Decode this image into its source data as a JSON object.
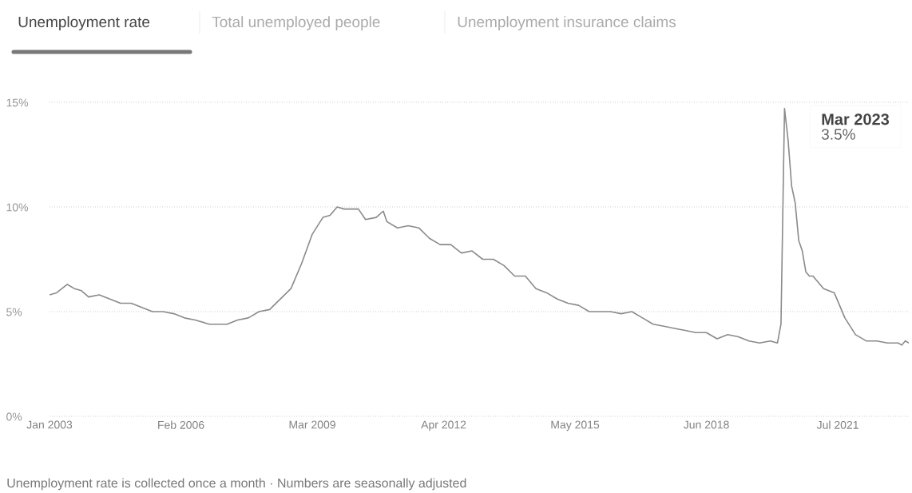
{
  "chart_data": {
    "type": "line",
    "color": "#8a8a8a",
    "annotations": [
      "Unemployment rate",
      "Total unemployed people",
      "Unemployment insurance claims",
      "Mar 2023",
      "3.5%",
      "Unemployment rate is collected once a month · Numbers are seasonally adjusted"
    ],
    "x": [
      "2003-01",
      "2003-03",
      "2003-06",
      "2003-08",
      "2003-10",
      "2003-12",
      "2004-03",
      "2004-06",
      "2004-09",
      "2004-12",
      "2005-03",
      "2005-06",
      "2005-09",
      "2005-12",
      "2006-03",
      "2006-06",
      "2006-10",
      "2006-12",
      "2007-03",
      "2007-06",
      "2007-09",
      "2007-12",
      "2008-03",
      "2008-06",
      "2008-09",
      "2008-12",
      "2009-03",
      "2009-06",
      "2009-08",
      "2009-10",
      "2009-12",
      "2010-03",
      "2010-04",
      "2010-06",
      "2010-09",
      "2010-11",
      "2010-12",
      "2011-03",
      "2011-06",
      "2011-09",
      "2011-12",
      "2012-03",
      "2012-06",
      "2012-09",
      "2012-12",
      "2013-03",
      "2013-06",
      "2013-09",
      "2013-12",
      "2014-03",
      "2014-06",
      "2014-09",
      "2014-12",
      "2015-03",
      "2015-06",
      "2015-09",
      "2015-12",
      "2016-03",
      "2016-06",
      "2016-09",
      "2016-12",
      "2017-03",
      "2017-06",
      "2017-09",
      "2017-12",
      "2018-03",
      "2018-06",
      "2018-09",
      "2018-12",
      "2019-03",
      "2019-06",
      "2019-09",
      "2019-12",
      "2020-02",
      "2020-03",
      "2020-04",
      "2020-05",
      "2020-06",
      "2020-07",
      "2020-08",
      "2020-09",
      "2020-10",
      "2020-11",
      "2020-12",
      "2021-03",
      "2021-06",
      "2021-09",
      "2021-12",
      "2022-03",
      "2022-06",
      "2022-09",
      "2022-12",
      "2023-01",
      "2023-02",
      "2023-03"
    ],
    "values": [
      5.8,
      5.9,
      6.3,
      6.1,
      6.0,
      5.7,
      5.8,
      5.6,
      5.4,
      5.4,
      5.2,
      5.0,
      5.0,
      4.9,
      4.7,
      4.6,
      4.4,
      4.4,
      4.4,
      4.6,
      4.7,
      5.0,
      5.1,
      5.6,
      6.1,
      7.3,
      8.7,
      9.5,
      9.6,
      10.0,
      9.9,
      9.9,
      9.9,
      9.4,
      9.5,
      9.8,
      9.3,
      9.0,
      9.1,
      9.0,
      8.5,
      8.2,
      8.2,
      7.8,
      7.9,
      7.5,
      7.5,
      7.2,
      6.7,
      6.7,
      6.1,
      5.9,
      5.6,
      5.4,
      5.3,
      5.0,
      5.0,
      5.0,
      4.9,
      5.0,
      4.7,
      4.4,
      4.3,
      4.2,
      4.1,
      4.0,
      4.0,
      3.7,
      3.9,
      3.8,
      3.6,
      3.5,
      3.6,
      3.5,
      4.4,
      14.7,
      13.2,
      11.0,
      10.2,
      8.4,
      7.9,
      6.9,
      6.7,
      6.7,
      6.1,
      5.9,
      4.7,
      3.9,
      3.6,
      3.6,
      3.5,
      3.5,
      3.4,
      3.6,
      3.5
    ],
    "xticks": [
      {
        "value": "2003-01",
        "label": "Jan 2003"
      },
      {
        "value": "2006-02",
        "label": "Feb 2006"
      },
      {
        "value": "2009-03",
        "label": "Mar 2009"
      },
      {
        "value": "2012-04",
        "label": "Apr 2012"
      },
      {
        "value": "2015-05",
        "label": "May 2015"
      },
      {
        "value": "2018-06",
        "label": "Jun 2018"
      },
      {
        "value": "2021-07",
        "label": "Jul 2021"
      }
    ],
    "xlim": [
      "2003-01",
      "2023-03"
    ],
    "ylim": [
      0,
      15
    ],
    "yticks": [
      {
        "value": 0,
        "label": "0%"
      },
      {
        "value": 5,
        "label": "5%"
      },
      {
        "value": 10,
        "label": "10%"
      },
      {
        "value": 15,
        "label": "15%"
      }
    ],
    "grid": "y"
  }
}
